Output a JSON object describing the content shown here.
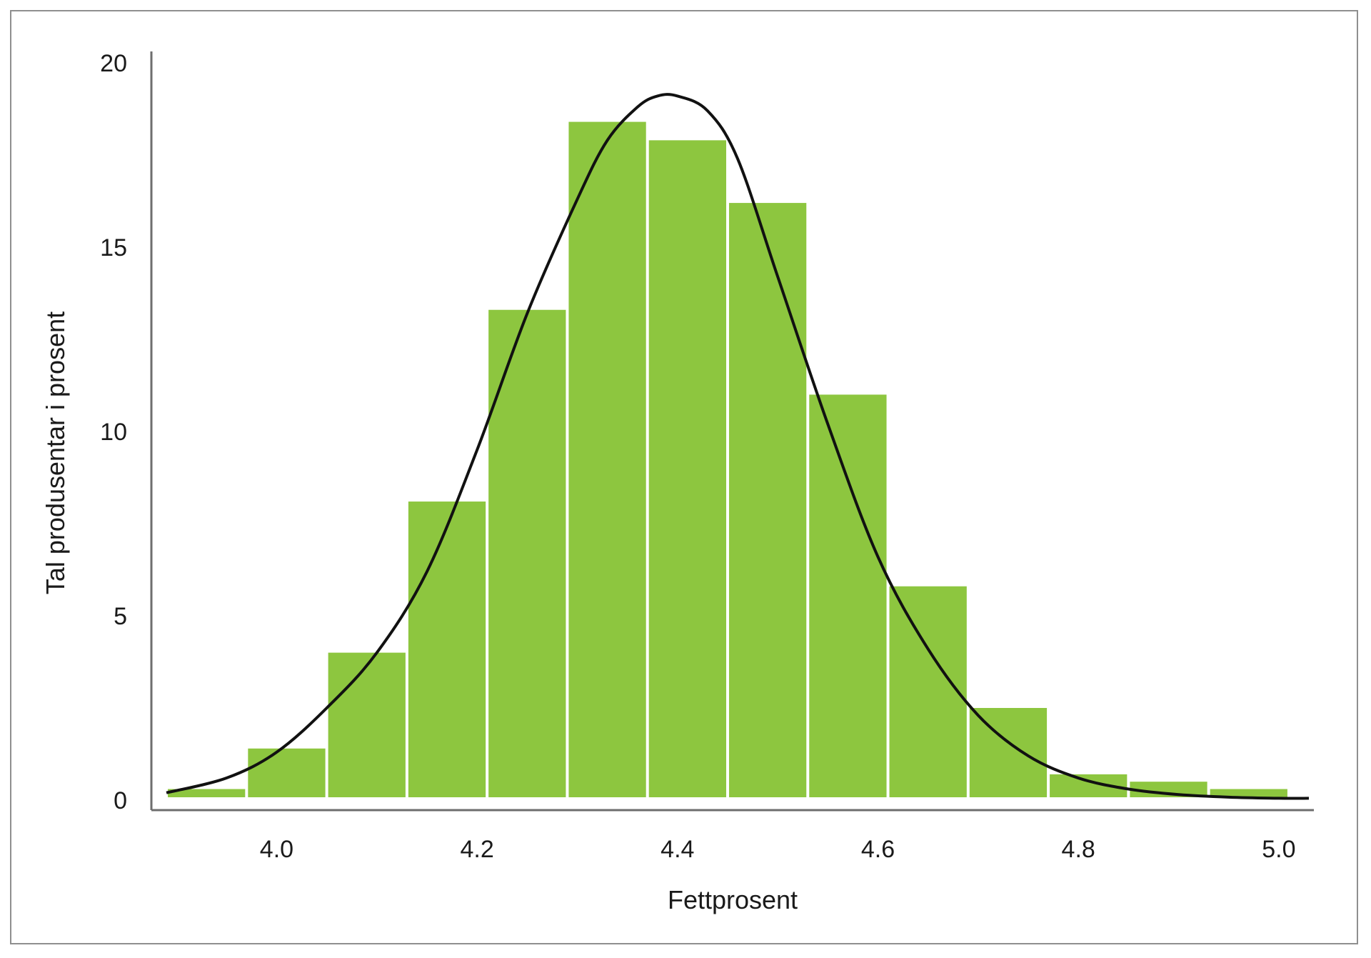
{
  "chart_data": {
    "type": "bar",
    "title": "",
    "xlabel": "Fettprosent",
    "ylabel": "Tal produsentar i prosent",
    "xlim": [
      3.875,
      5.035
    ],
    "ylim": [
      0,
      20
    ],
    "xticks": [
      "4.0",
      "4.2",
      "4.4",
      "4.6",
      "4.8",
      "5.0"
    ],
    "xtick_values": [
      4.0,
      4.2,
      4.4,
      4.6,
      4.8,
      5.0
    ],
    "yticks": [
      "0",
      "5",
      "10",
      "15",
      "20"
    ],
    "ytick_values": [
      0,
      5,
      10,
      15,
      20
    ],
    "grid": false,
    "legend": "none",
    "bin_width": 0.08,
    "bars": [
      {
        "x0": 3.89,
        "x1": 3.97,
        "value": 0.3
      },
      {
        "x0": 3.97,
        "x1": 4.05,
        "value": 1.4
      },
      {
        "x0": 4.05,
        "x1": 4.13,
        "value": 4.0
      },
      {
        "x0": 4.13,
        "x1": 4.21,
        "value": 8.1
      },
      {
        "x0": 4.21,
        "x1": 4.29,
        "value": 13.3
      },
      {
        "x0": 4.29,
        "x1": 4.37,
        "value": 18.4
      },
      {
        "x0": 4.37,
        "x1": 4.45,
        "value": 17.9
      },
      {
        "x0": 4.45,
        "x1": 4.53,
        "value": 16.2
      },
      {
        "x0": 4.53,
        "x1": 4.61,
        "value": 11.0
      },
      {
        "x0": 4.61,
        "x1": 4.69,
        "value": 5.8
      },
      {
        "x0": 4.69,
        "x1": 4.77,
        "value": 2.5
      },
      {
        "x0": 4.77,
        "x1": 4.85,
        "value": 0.7
      },
      {
        "x0": 4.85,
        "x1": 4.93,
        "value": 0.5
      },
      {
        "x0": 4.93,
        "x1": 5.01,
        "value": 0.3
      }
    ],
    "density_curve": {
      "x": [
        3.89,
        3.95,
        4.0,
        4.05,
        4.1,
        4.15,
        4.2,
        4.25,
        4.3,
        4.33,
        4.36,
        4.38,
        4.4,
        4.43,
        4.46,
        4.5,
        4.55,
        4.6,
        4.65,
        4.7,
        4.75,
        4.8,
        4.85,
        4.9,
        4.95,
        5.0,
        5.03
      ],
      "y": [
        0.2,
        0.6,
        1.3,
        2.5,
        4.0,
        6.2,
        9.5,
        13.2,
        16.3,
        17.9,
        18.8,
        19.1,
        19.1,
        18.7,
        17.4,
        14.2,
        10.2,
        6.6,
        4.1,
        2.3,
        1.2,
        0.6,
        0.3,
        0.15,
        0.08,
        0.05,
        0.05
      ]
    },
    "colors": {
      "bar": "#8dc63f",
      "curve": "#111111",
      "axis": "#6e6e6e"
    }
  }
}
